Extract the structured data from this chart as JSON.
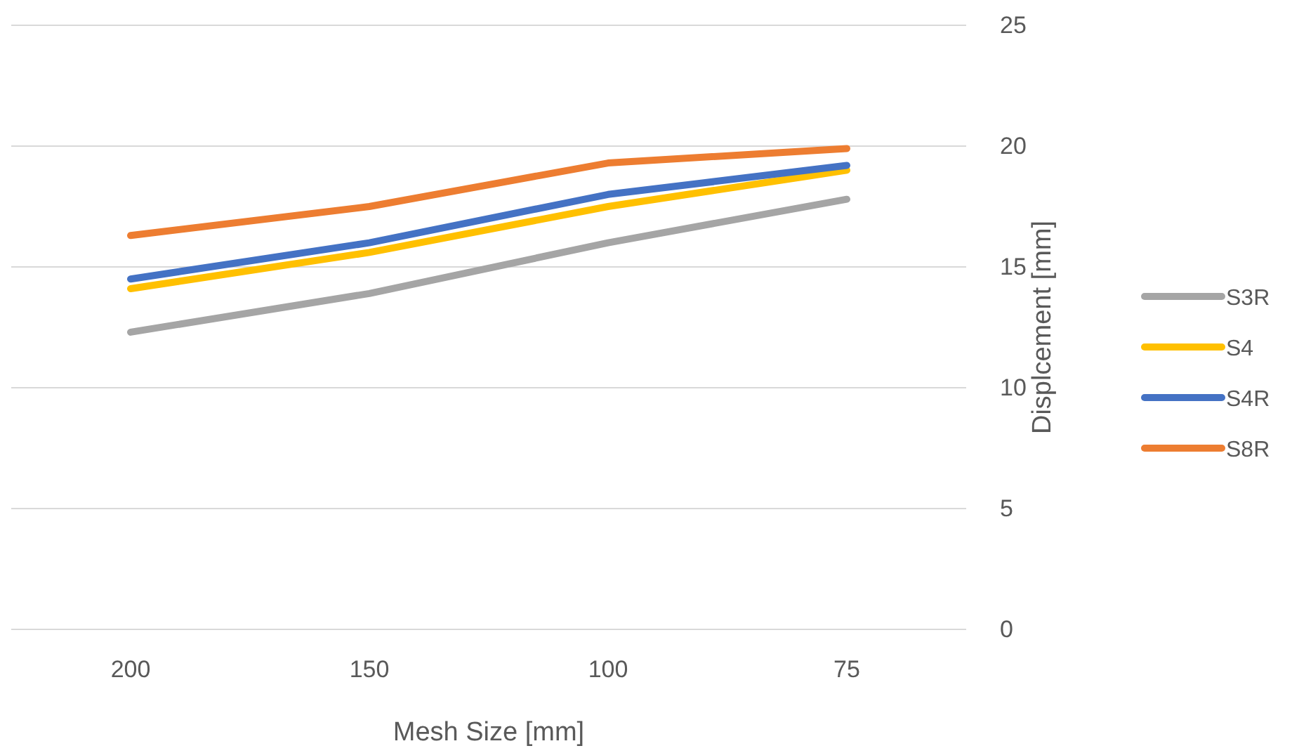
{
  "chart_data": {
    "type": "line",
    "xlabel": "Mesh Size [mm]",
    "ylabel": "Displcement [mm]",
    "categories": [
      "200",
      "150",
      "100",
      "75"
    ],
    "series": [
      {
        "name": "S3R",
        "color": "#a5a5a5",
        "values": [
          12.3,
          13.9,
          16.0,
          17.8
        ]
      },
      {
        "name": "S4",
        "color": "#ffc000",
        "values": [
          14.1,
          15.6,
          17.5,
          19.0
        ]
      },
      {
        "name": "S4R",
        "color": "#4472c4",
        "values": [
          14.5,
          16.0,
          18.0,
          19.2
        ]
      },
      {
        "name": "S8R",
        "color": "#ed7d31",
        "values": [
          16.3,
          17.5,
          19.3,
          19.9
        ]
      }
    ],
    "ylim": [
      0,
      25
    ],
    "yticks": [
      0,
      5,
      10,
      15,
      20,
      25
    ],
    "grid": "y",
    "legend": "right",
    "line_style": "solid",
    "marker": "none"
  }
}
